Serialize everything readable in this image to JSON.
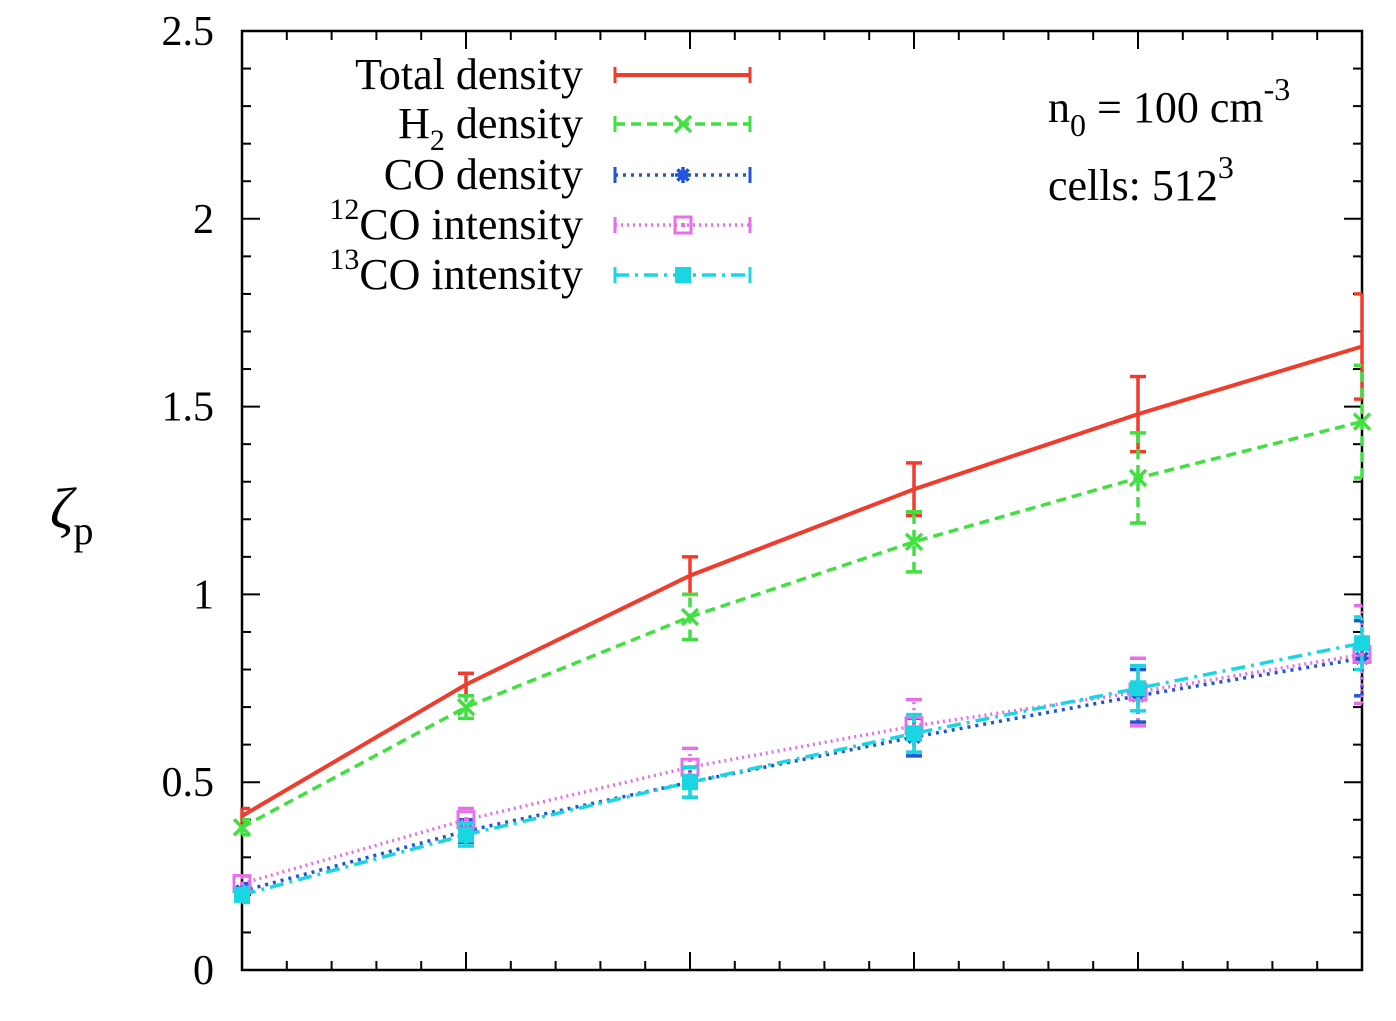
{
  "chart_data": {
    "type": "line",
    "title": "",
    "xlabel": "",
    "ylabel": "ζ",
    "ylabel_sub": "p",
    "x": [
      1,
      2,
      3,
      4,
      5,
      6
    ],
    "xlim": [
      1,
      6
    ],
    "ylim": [
      0,
      2.5
    ],
    "yticks": [
      "0",
      "0.5",
      "1",
      "1.5",
      "2",
      "2.5"
    ],
    "ytick_values": [
      0,
      0.5,
      1,
      1.5,
      2,
      2.5
    ],
    "grid": false,
    "legend_position": "top-left",
    "series": [
      {
        "name": "Total density",
        "label_main": "Total density",
        "label_sup": "",
        "label_sub": "",
        "label_rest": "",
        "color": "#f03c2c",
        "dash": "",
        "marker": "none",
        "values": [
          0.41,
          0.76,
          1.05,
          1.28,
          1.48,
          1.66
        ],
        "errors": [
          0.02,
          0.03,
          0.05,
          0.07,
          0.1,
          0.14
        ]
      },
      {
        "name": "H2 density",
        "label_main": "H",
        "label_sup": "",
        "label_sub": "2",
        "label_rest": " density",
        "color": "#3fe03f",
        "dash": "10,6",
        "marker": "x",
        "values": [
          0.38,
          0.7,
          0.94,
          1.14,
          1.31,
          1.46
        ],
        "errors": [
          0.02,
          0.03,
          0.06,
          0.08,
          0.12,
          0.15
        ]
      },
      {
        "name": "CO density",
        "label_main": "CO density",
        "label_sup": "",
        "label_sub": "",
        "label_rest": "",
        "color": "#1f55d6",
        "dash": "3,5",
        "marker": "star",
        "values": [
          0.21,
          0.37,
          0.5,
          0.62,
          0.73,
          0.83
        ],
        "errors": [
          0.02,
          0.03,
          0.04,
          0.05,
          0.07,
          0.1
        ]
      },
      {
        "name": "12CO intensity",
        "label_main": "CO intensity",
        "label_sup": "12",
        "label_sub": "",
        "label_rest": "",
        "color": "#e86ee8",
        "dash": "2,4",
        "marker": "square-open",
        "values": [
          0.23,
          0.4,
          0.54,
          0.65,
          0.74,
          0.84
        ],
        "errors": [
          0.02,
          0.03,
          0.05,
          0.07,
          0.09,
          0.13
        ]
      },
      {
        "name": "13CO intensity",
        "label_main": "CO intensity",
        "label_sup": "13",
        "label_sub": "",
        "label_rest": "",
        "color": "#19d6e0",
        "dash": "14,6,3,6",
        "marker": "square-filled",
        "values": [
          0.2,
          0.36,
          0.5,
          0.63,
          0.75,
          0.87
        ],
        "errors": [
          0.02,
          0.03,
          0.04,
          0.05,
          0.06,
          0.07
        ]
      }
    ],
    "annotations": {
      "n0_main": "n",
      "n0_sub": "0",
      "n0_rest": " = 100 cm",
      "n0_sup": "-3",
      "cells_main": "cells: 512",
      "cells_sup": "3"
    }
  }
}
